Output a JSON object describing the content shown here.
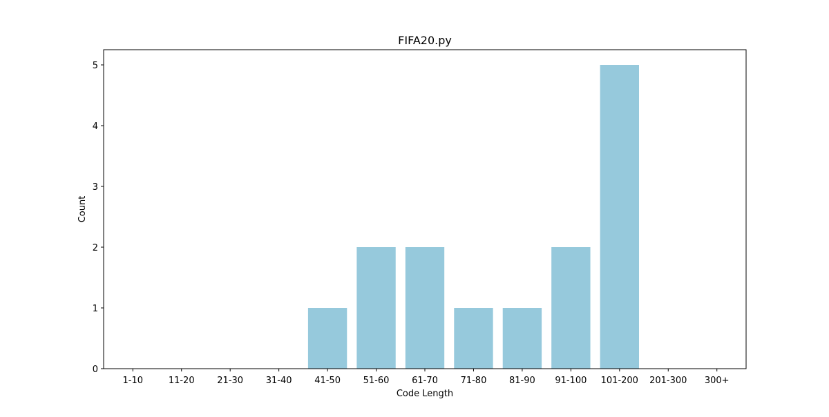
{
  "chart_data": {
    "type": "bar",
    "title": "FIFA20.py",
    "xlabel": "Code Length",
    "ylabel": "Count",
    "categories": [
      "1-10",
      "11-20",
      "21-30",
      "31-40",
      "41-50",
      "51-60",
      "61-70",
      "71-80",
      "81-90",
      "91-100",
      "101-200",
      "201-300",
      "300+"
    ],
    "values": [
      0,
      0,
      0,
      0,
      1,
      2,
      2,
      1,
      1,
      2,
      5,
      0,
      0
    ],
    "yticks": [
      0,
      1,
      2,
      3,
      4,
      5
    ],
    "ylim": [
      0,
      5.25
    ],
    "bar_color": "#96c9dc",
    "grid": false,
    "legend": "none"
  }
}
